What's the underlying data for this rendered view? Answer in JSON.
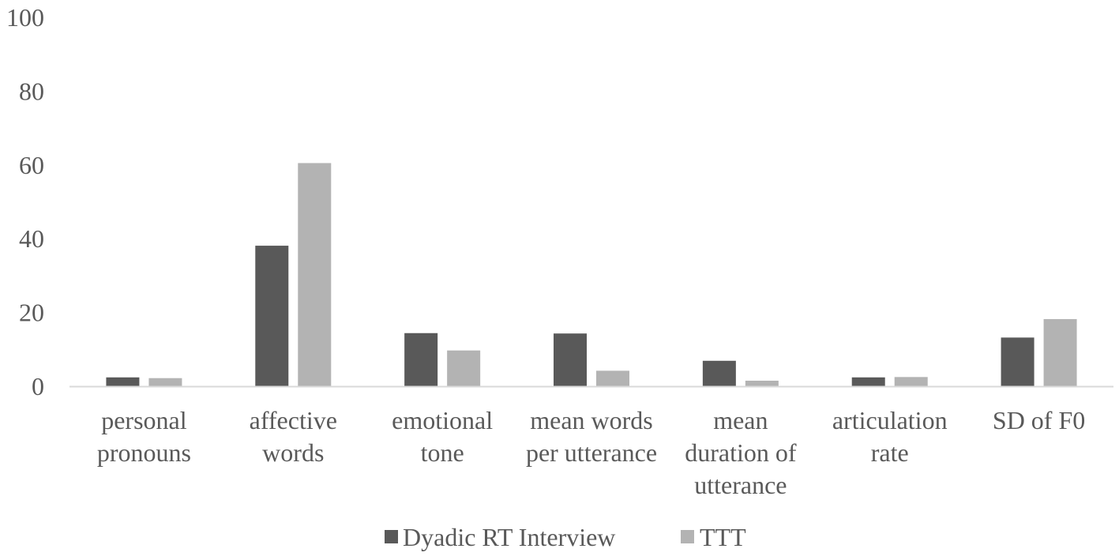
{
  "chart_data": {
    "type": "bar",
    "title": "",
    "xlabel": "",
    "ylabel": "",
    "ylim": [
      0,
      100
    ],
    "yticks": [
      0,
      20,
      40,
      60,
      80,
      100
    ],
    "grid": false,
    "legend_position": "bottom",
    "categories": [
      [
        "personal",
        "pronouns"
      ],
      [
        "affective",
        "words"
      ],
      [
        "emotional",
        "tone"
      ],
      [
        "mean words",
        "per utterance"
      ],
      [
        "mean",
        "duration of",
        "utterance"
      ],
      [
        "articulation",
        "rate"
      ],
      [
        "SD of F0"
      ]
    ],
    "series": [
      {
        "name": "Dyadic RT Interview",
        "color": "#595959",
        "values": [
          2.4,
          38.1,
          14.4,
          14.3,
          6.9,
          2.4,
          13.2
        ]
      },
      {
        "name": "TTT",
        "color": "#b3b3b3",
        "values": [
          2.2,
          60.5,
          9.7,
          4.2,
          1.5,
          2.5,
          18.2
        ]
      }
    ]
  }
}
